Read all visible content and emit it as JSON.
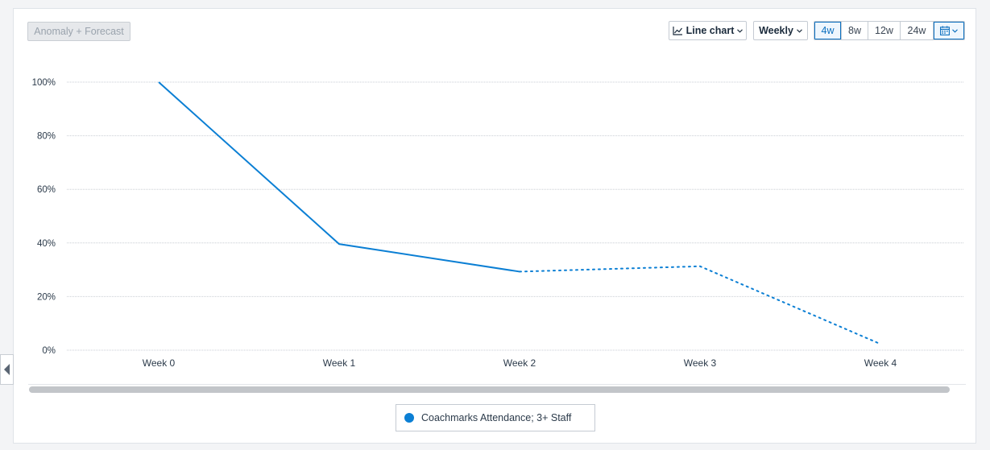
{
  "toolbar": {
    "anomaly_label": "Anomaly + Forecast",
    "chart_type_label": "Line chart",
    "interval_label": "Weekly",
    "ranges": [
      "4w",
      "8w",
      "12w",
      "24w"
    ],
    "active_range": "4w"
  },
  "colors": {
    "series": "#0b7fd4",
    "accent": "#0b6fbf"
  },
  "chart_data": {
    "type": "line",
    "x": [
      "Week 0",
      "Week 1",
      "Week 2",
      "Week 3",
      "Week 4"
    ],
    "y_ticks": [
      "0%",
      "20%",
      "40%",
      "60%",
      "80%",
      "100%"
    ],
    "ylim": [
      0,
      100
    ],
    "grid": true,
    "series": [
      {
        "name": "Coachmarks Attendance; 3+ Staff",
        "values": [
          100,
          39.6,
          29.3,
          31.3,
          2.3
        ],
        "solid_through_index": 2
      }
    ],
    "legend_position": "bottom"
  },
  "legend": {
    "label": "Coachmarks Attendance; 3+ Staff"
  }
}
